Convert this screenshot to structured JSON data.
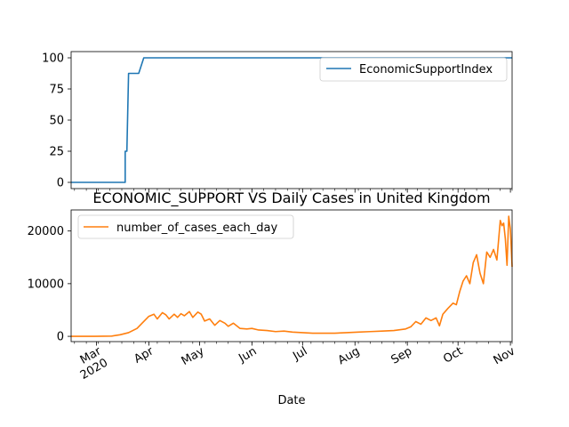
{
  "chart_data": [
    {
      "type": "line",
      "title": "",
      "xlabel": "",
      "ylabel": "",
      "ylim": [
        -5,
        105
      ],
      "yticks": [
        0,
        25,
        50,
        75,
        100
      ],
      "legend": {
        "placement": "top-right"
      },
      "series": [
        {
          "name": "EconomicSupportIndex",
          "color": "#1f77b4",
          "points": [
            [
              "2020-02-15",
              0
            ],
            [
              "2020-03-18",
              0
            ],
            [
              "2020-03-18",
              25
            ],
            [
              "2020-03-19",
              25
            ],
            [
              "2020-03-20",
              87.5
            ],
            [
              "2020-03-26",
              87.5
            ],
            [
              "2020-03-29",
              100
            ],
            [
              "2020-11-02",
              100
            ]
          ]
        }
      ]
    },
    {
      "type": "line",
      "title": "ECONOMIC_SUPPORT VS Daily Cases in United Kingdom",
      "xlabel": "Date",
      "ylabel": "",
      "ylim": [
        -1000,
        24000
      ],
      "yticks": [
        0,
        10000,
        20000
      ],
      "legend": {
        "placement": "top-left"
      },
      "x_tick_labels": [
        "Mar\n2020",
        "Apr",
        "May",
        "Jun",
        "Jul",
        "Aug",
        "Sep",
        "Oct",
        "Nov"
      ],
      "series": [
        {
          "name": "number_of_cases_each_day",
          "color": "#ff7f0e",
          "points": [
            [
              "2020-02-15",
              0
            ],
            [
              "2020-02-29",
              0
            ],
            [
              "2020-03-10",
              50
            ],
            [
              "2020-03-15",
              300
            ],
            [
              "2020-03-20",
              700
            ],
            [
              "2020-03-25",
              1500
            ],
            [
              "2020-03-28",
              2500
            ],
            [
              "2020-04-01",
              3800
            ],
            [
              "2020-04-04",
              4200
            ],
            [
              "2020-04-06",
              3300
            ],
            [
              "2020-04-09",
              4500
            ],
            [
              "2020-04-11",
              4100
            ],
            [
              "2020-04-13",
              3300
            ],
            [
              "2020-04-16",
              4200
            ],
            [
              "2020-04-18",
              3600
            ],
            [
              "2020-04-20",
              4300
            ],
            [
              "2020-04-22",
              3900
            ],
            [
              "2020-04-25",
              4700
            ],
            [
              "2020-04-27",
              3600
            ],
            [
              "2020-04-30",
              4600
            ],
            [
              "2020-05-02",
              4200
            ],
            [
              "2020-05-04",
              2900
            ],
            [
              "2020-05-07",
              3300
            ],
            [
              "2020-05-10",
              2100
            ],
            [
              "2020-05-13",
              3000
            ],
            [
              "2020-05-16",
              2500
            ],
            [
              "2020-05-18",
              1900
            ],
            [
              "2020-05-21",
              2500
            ],
            [
              "2020-05-25",
              1500
            ],
            [
              "2020-05-29",
              1400
            ],
            [
              "2020-06-01",
              1500
            ],
            [
              "2020-06-05",
              1200
            ],
            [
              "2020-06-10",
              1100
            ],
            [
              "2020-06-15",
              900
            ],
            [
              "2020-06-20",
              1000
            ],
            [
              "2020-06-25",
              800
            ],
            [
              "2020-07-01",
              700
            ],
            [
              "2020-07-07",
              600
            ],
            [
              "2020-07-13",
              600
            ],
            [
              "2020-07-20",
              600
            ],
            [
              "2020-07-27",
              700
            ],
            [
              "2020-08-03",
              800
            ],
            [
              "2020-08-10",
              900
            ],
            [
              "2020-08-17",
              1000
            ],
            [
              "2020-08-24",
              1100
            ],
            [
              "2020-08-31",
              1400
            ],
            [
              "2020-09-03",
              1800
            ],
            [
              "2020-09-06",
              2800
            ],
            [
              "2020-09-09",
              2300
            ],
            [
              "2020-09-12",
              3500
            ],
            [
              "2020-09-15",
              3000
            ],
            [
              "2020-09-18",
              3500
            ],
            [
              "2020-09-20",
              2000
            ],
            [
              "2020-09-22",
              4200
            ],
            [
              "2020-09-25",
              5300
            ],
            [
              "2020-09-28",
              6300
            ],
            [
              "2020-09-30",
              6000
            ],
            [
              "2020-10-02",
              8500
            ],
            [
              "2020-10-04",
              10500
            ],
            [
              "2020-10-06",
              11500
            ],
            [
              "2020-10-08",
              10000
            ],
            [
              "2020-10-10",
              14000
            ],
            [
              "2020-10-12",
              15500
            ],
            [
              "2020-10-14",
              12000
            ],
            [
              "2020-10-16",
              10000
            ],
            [
              "2020-10-18",
              16000
            ],
            [
              "2020-10-20",
              15000
            ],
            [
              "2020-10-22",
              16500
            ],
            [
              "2020-10-24",
              14500
            ],
            [
              "2020-10-26",
              22000
            ],
            [
              "2020-10-27",
              21000
            ],
            [
              "2020-10-28",
              21500
            ],
            [
              "2020-10-29",
              18500
            ],
            [
              "2020-10-30",
              13500
            ],
            [
              "2020-10-31",
              22800
            ],
            [
              "2020-11-01",
              20300
            ],
            [
              "2020-11-02",
              13200
            ]
          ]
        }
      ]
    }
  ]
}
